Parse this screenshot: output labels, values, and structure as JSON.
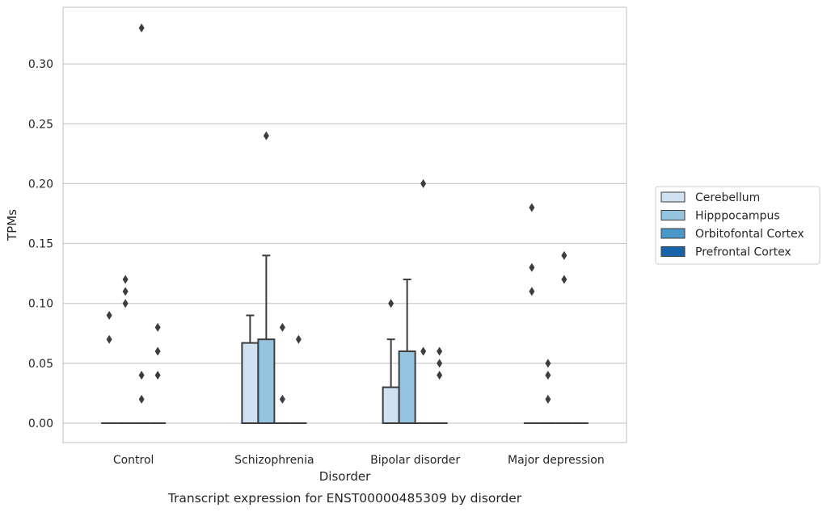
{
  "chart_data": {
    "type": "box",
    "title": "",
    "caption": "Transcript expression for ENST00000485309 by disorder",
    "xlabel": "Disorder",
    "ylabel": "TPMs",
    "ylim": [
      -0.0163,
      0.347
    ],
    "yticks": [
      "0.00",
      "0.05",
      "0.10",
      "0.15",
      "0.20",
      "0.25",
      "0.30"
    ],
    "grid": true,
    "legend_position": "right",
    "categories": [
      "Control",
      "Schizophrenia",
      "Bipolar disorder",
      "Major depression"
    ],
    "series": [
      {
        "name": "Cerebellum",
        "color": "#d0e1f2"
      },
      {
        "name": "Hipppocampus",
        "color": "#94c4df"
      },
      {
        "name": "Orbitofontal Cortex",
        "color": "#4a98c9"
      },
      {
        "name": "Prefrontal Cortex",
        "color": "#1764ab"
      }
    ],
    "boxes": [
      [
        {
          "q1": 0,
          "median": 0,
          "q3": 0,
          "whisker_low": 0,
          "whisker_high": 0,
          "outliers": [
            0.07,
            0.09
          ]
        },
        {
          "q1": 0,
          "median": 0,
          "q3": 0,
          "whisker_low": 0,
          "whisker_high": 0,
          "outliers": [
            0.1,
            0.11,
            0.12
          ]
        },
        {
          "q1": 0,
          "median": 0,
          "q3": 0,
          "whisker_low": 0,
          "whisker_high": 0,
          "outliers": [
            0.02,
            0.04,
            0.33
          ]
        },
        {
          "q1": 0,
          "median": 0,
          "q3": 0,
          "whisker_low": 0,
          "whisker_high": 0,
          "outliers": [
            0.04,
            0.06,
            0.08
          ]
        }
      ],
      [
        {
          "q1": 0,
          "median": 0,
          "q3": 0.067,
          "whisker_low": 0,
          "whisker_high": 0.09,
          "outliers": []
        },
        {
          "q1": 0,
          "median": 0,
          "q3": 0.07,
          "whisker_low": 0,
          "whisker_high": 0.14,
          "outliers": [
            0.24
          ]
        },
        {
          "q1": 0,
          "median": 0,
          "q3": 0,
          "whisker_low": 0,
          "whisker_high": 0,
          "outliers": [
            0.02,
            0.08
          ]
        },
        {
          "q1": 0,
          "median": 0,
          "q3": 0,
          "whisker_low": 0,
          "whisker_high": 0,
          "outliers": [
            0.07
          ]
        }
      ],
      [
        {
          "q1": 0,
          "median": 0,
          "q3": 0.03,
          "whisker_low": 0,
          "whisker_high": 0.07,
          "outliers": [
            0.1
          ]
        },
        {
          "q1": 0,
          "median": 0,
          "q3": 0.06,
          "whisker_low": 0,
          "whisker_high": 0.12,
          "outliers": []
        },
        {
          "q1": 0,
          "median": 0,
          "q3": 0,
          "whisker_low": 0,
          "whisker_high": 0,
          "outliers": [
            0.06,
            0.2
          ]
        },
        {
          "q1": 0,
          "median": 0,
          "q3": 0,
          "whisker_low": 0,
          "whisker_high": 0,
          "outliers": [
            0.04,
            0.05,
            0.06
          ]
        }
      ],
      [
        {
          "q1": 0,
          "median": 0,
          "q3": 0,
          "whisker_low": 0,
          "whisker_high": 0,
          "outliers": [
            0.11,
            0.13,
            0.18
          ]
        },
        {
          "q1": 0,
          "median": 0,
          "q3": 0,
          "whisker_low": 0,
          "whisker_high": 0,
          "outliers": [
            0.02,
            0.04,
            0.05
          ]
        },
        {
          "q1": 0,
          "median": 0,
          "q3": 0,
          "whisker_low": 0,
          "whisker_high": 0,
          "outliers": [
            0.12,
            0.14
          ]
        },
        {
          "q1": 0,
          "median": 0,
          "q3": 0,
          "whisker_low": 0,
          "whisker_high": 0,
          "outliers": []
        }
      ]
    ]
  }
}
